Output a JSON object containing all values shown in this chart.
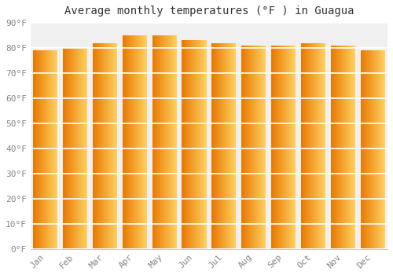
{
  "months": [
    "Jan",
    "Feb",
    "Mar",
    "Apr",
    "May",
    "Jun",
    "Jul",
    "Aug",
    "Sep",
    "Oct",
    "Nov",
    "Dec"
  ],
  "values": [
    79,
    80,
    82,
    85,
    85,
    83,
    82,
    81,
    81,
    82,
    81,
    79
  ],
  "title": "Average monthly temperatures (°F ) in Guagua",
  "ylim": [
    0,
    90
  ],
  "yticks": [
    0,
    10,
    20,
    30,
    40,
    50,
    60,
    70,
    80,
    90
  ],
  "bar_color_left": "#E87800",
  "bar_color_right": "#FFD060",
  "background_color": "#ffffff",
  "plot_bg_color": "#f0f0f0",
  "grid_color": "#ffffff",
  "title_fontsize": 10,
  "tick_fontsize": 8,
  "tick_color": "#888888"
}
